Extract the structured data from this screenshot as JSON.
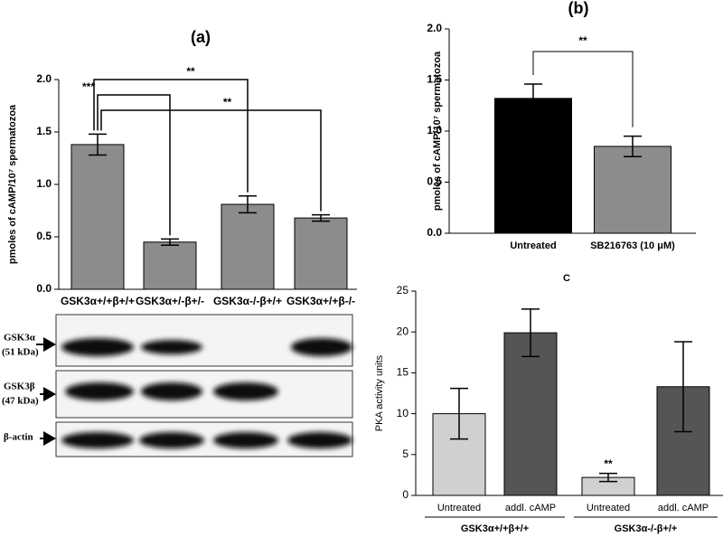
{
  "chart_data": [
    {
      "type": "bar",
      "title": "(a)",
      "ylabel": "pmoles of cAMP/10⁷ spermatozoa",
      "categories": [
        "GSK3α+/+β+/+",
        "GSK3α+/-β+/-",
        "GSK3α-/-β+/+",
        "GSK3α+/+β-/-"
      ],
      "values": [
        1.38,
        0.45,
        0.81,
        0.68
      ],
      "errors": [
        0.1,
        0.03,
        0.08,
        0.03
      ],
      "colors": [
        "#8c8c8c",
        "#8c8c8c",
        "#8c8c8c",
        "#8c8c8c"
      ],
      "ylim": [
        0,
        2
      ],
      "yticks": [
        {
          "value": 0,
          "label": "0.0"
        },
        0.5,
        {
          "value": 1,
          "label": "1.0"
        },
        1.5,
        {
          "value": 2,
          "label": "2.0"
        }
      ],
      "annotations": [
        "**",
        "***",
        "**"
      ]
    },
    {
      "type": "bar",
      "title": "(b)",
      "ylabel": "pmoles of cAMP/10⁷ spermatozoa",
      "categories": [
        "Untreated",
        "SB216763 (10 μM)"
      ],
      "values": [
        1.32,
        0.85
      ],
      "errors": [
        0.14,
        0.1
      ],
      "colors": [
        "#000000",
        "#8c8c8c"
      ],
      "ylim": [
        0,
        2
      ],
      "yticks": [
        {
          "value": 0,
          "label": "0.0"
        },
        0.5,
        {
          "value": 1,
          "label": "1.0"
        },
        1.5,
        {
          "value": 2,
          "label": "2.0"
        }
      ],
      "annotations": [
        "**"
      ]
    },
    {
      "type": "bar",
      "title": "C",
      "ylabel": "PKA activity units",
      "categories": [
        "Untreated",
        "addl. cAMP",
        "Untreated",
        "addl. cAMP"
      ],
      "groups": [
        "GSK3α+/+β+/+",
        "GSK3α-/-β+/+"
      ],
      "values": [
        10,
        19.9,
        2.2,
        13.3
      ],
      "errors": [
        3.1,
        2.9,
        0.5,
        5.5
      ],
      "colors": [
        "#d0d0d0",
        "#555555",
        "#d0d0d0",
        "#555555"
      ],
      "ylim": [
        0,
        25
      ],
      "yticks": [
        0,
        5,
        10,
        15,
        20,
        25
      ],
      "annotations": [
        "**"
      ]
    }
  ],
  "blot": {
    "rows": [
      {
        "name": "GSK3α",
        "size": "(51 kDa)"
      },
      {
        "name": "GSK3β",
        "size": "(47 kDa)"
      },
      {
        "name": "β-actin"
      }
    ]
  }
}
